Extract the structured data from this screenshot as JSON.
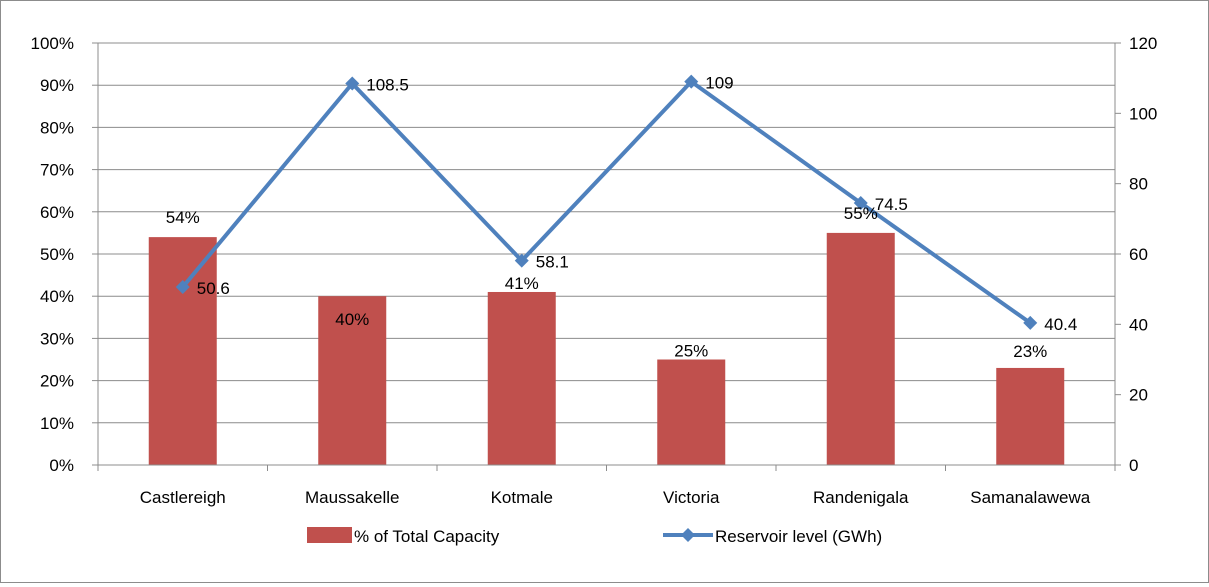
{
  "chart_data": {
    "type": "bar",
    "categories": [
      "Castlereigh",
      "Maussakelle",
      "Kotmale",
      "Victoria",
      "Randenigala",
      "Samanalawewa"
    ],
    "series": [
      {
        "name": "% of Total Capacity",
        "chart_type": "bar",
        "axis": "left",
        "values": [
          54,
          40,
          41,
          25,
          55,
          23
        ],
        "labels": [
          "54%",
          "40%",
          "41%",
          "25%",
          "55%",
          "23%"
        ],
        "color": "#c0504d"
      },
      {
        "name": "Reservoir level (GWh)",
        "chart_type": "line",
        "axis": "right",
        "values": [
          50.6,
          108.5,
          58.1,
          109,
          74.5,
          40.4
        ],
        "labels": [
          "50.6",
          "108.5",
          "58.1",
          "109",
          "74.5",
          "40.4"
        ],
        "color": "#4f81bd"
      }
    ],
    "y_left": {
      "ylim": [
        0,
        100
      ],
      "ticks": [
        "0%",
        "10%",
        "20%",
        "30%",
        "40%",
        "50%",
        "60%",
        "70%",
        "80%",
        "90%",
        "100%"
      ]
    },
    "y_right": {
      "ylim": [
        0,
        120
      ],
      "ticks": [
        "0",
        "20",
        "40",
        "60",
        "80",
        "100",
        "120"
      ]
    },
    "title": "",
    "xlabel": "",
    "ylabel": "",
    "grid": true,
    "legend_position": "bottom"
  }
}
